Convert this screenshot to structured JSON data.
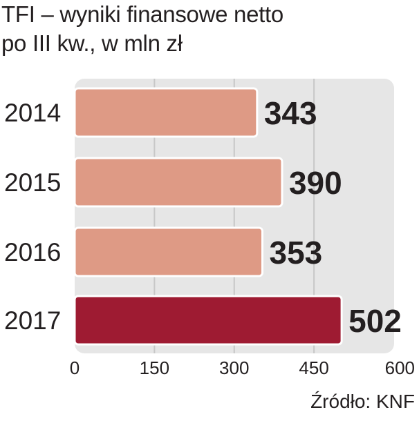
{
  "title": [
    "TFI – wyniki finansowe netto",
    "po III kw., w mln zł"
  ],
  "source": "Źródło: KNF",
  "colors": {
    "bar_default": "#de9a85",
    "bar_highlight": "#9e1b32",
    "bar_outline": "#ffffff",
    "plot_background": "#e6e6e6",
    "grid": "#c7c7c7",
    "text": "#231f20"
  },
  "chart_data": {
    "type": "bar",
    "orientation": "horizontal",
    "categories": [
      "2014",
      "2015",
      "2016",
      "2017"
    ],
    "values": [
      343,
      390,
      353,
      502
    ],
    "value_labels": [
      "343",
      "390",
      "353",
      "502"
    ],
    "highlight_index": 3,
    "xlim": [
      0,
      600
    ],
    "xticks": [
      0,
      150,
      300,
      450,
      600
    ],
    "xtick_labels": [
      "0",
      "150",
      "300",
      "450",
      "600"
    ],
    "grid": true,
    "title": "TFI – wyniki finansowe netto",
    "subtitle": "po III kw., w mln zł",
    "xlabel": "",
    "ylabel": ""
  }
}
